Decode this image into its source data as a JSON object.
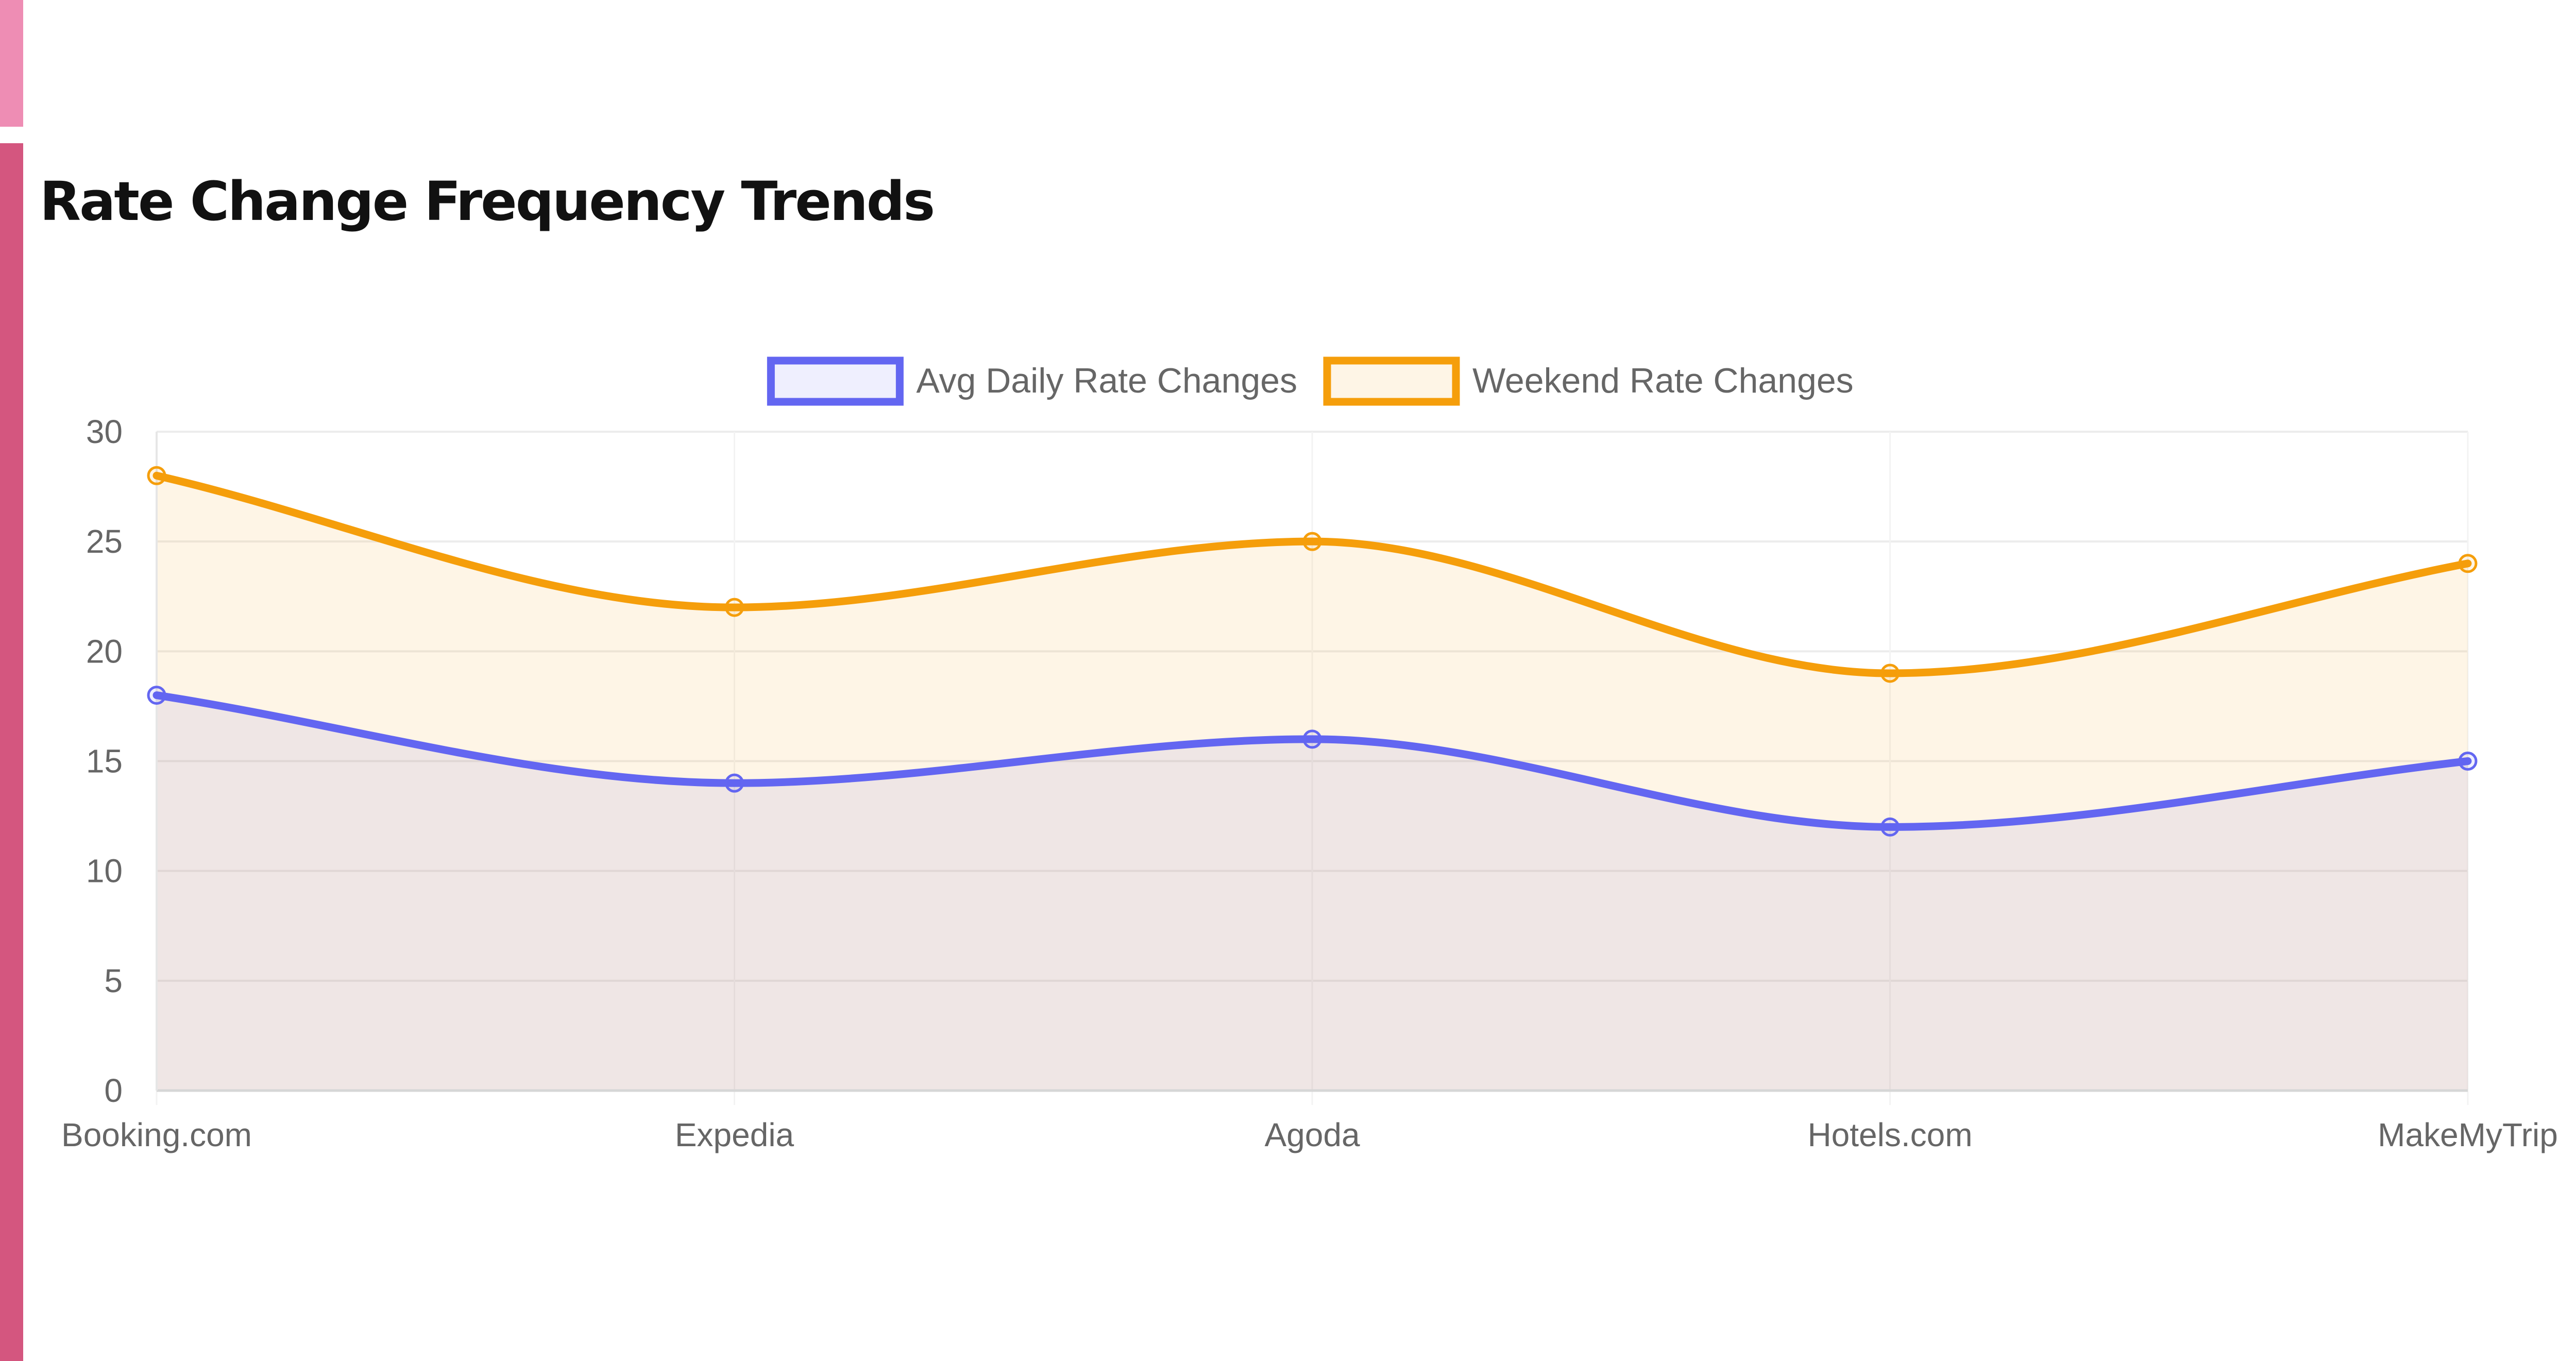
{
  "panel": {
    "title": "Rate Change Frequency Trends"
  },
  "chart_data": {
    "type": "line",
    "categories": [
      "Booking.com",
      "Expedia",
      "Agoda",
      "Hotels.com",
      "MakeMyTrip"
    ],
    "series": [
      {
        "name": "Avg Daily Rate Changes",
        "values": [
          18,
          14,
          16,
          12,
          15
        ],
        "color": "#6366f1",
        "fill": "rgba(99,102,241,0.1)"
      },
      {
        "name": "Weekend Rate Changes",
        "values": [
          28,
          22,
          25,
          19,
          24
        ],
        "color": "#f59e0b",
        "fill": "rgba(245,158,11,0.1)"
      }
    ],
    "ylim": [
      0,
      30
    ],
    "yticks": [
      "0",
      "5",
      "10",
      "15",
      "20",
      "25",
      "30"
    ],
    "grid": true,
    "filled": true,
    "smooth": true,
    "legend_position": "top-center"
  }
}
